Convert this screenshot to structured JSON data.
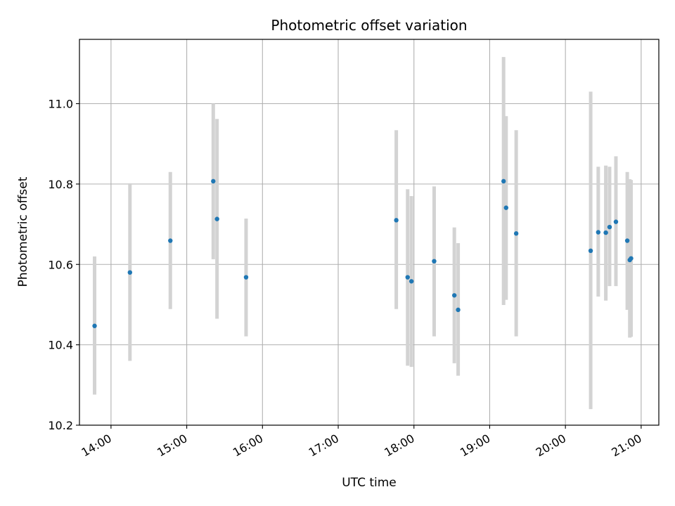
{
  "chart_data": {
    "type": "scatter",
    "title": "Photometric offset variation",
    "xlabel": "UTC time",
    "ylabel": "Photometric offset",
    "xlim": [
      "13:35",
      "21:14"
    ],
    "ylim": [
      10.2,
      11.16
    ],
    "x_ticks": [
      "14:00",
      "15:00",
      "16:00",
      "17:00",
      "18:00",
      "19:00",
      "20:00",
      "21:00"
    ],
    "y_ticks": [
      10.2,
      10.4,
      10.6,
      10.8,
      11.0
    ],
    "y_tick_labels": [
      "10.2",
      "10.4",
      "10.6",
      "10.8",
      "11.0"
    ],
    "grid": true,
    "colors": {
      "point": "#1f77b4",
      "errorbar": "#d3d3d3",
      "grid": "#b0b0b0"
    },
    "points": [
      {
        "x": "13:47",
        "y": 10.447,
        "ylow": 10.276,
        "yhigh": 10.62
      },
      {
        "x": "14:15",
        "y": 10.58,
        "ylow": 10.36,
        "yhigh": 10.802
      },
      {
        "x": "14:47",
        "y": 10.659,
        "ylow": 10.489,
        "yhigh": 10.83
      },
      {
        "x": "15:21",
        "y": 10.807,
        "ylow": 10.613,
        "yhigh": 11.0
      },
      {
        "x": "15:24",
        "y": 10.713,
        "ylow": 10.465,
        "yhigh": 10.962
      },
      {
        "x": "15:47",
        "y": 10.568,
        "ylow": 10.421,
        "yhigh": 10.714
      },
      {
        "x": "17:46",
        "y": 10.71,
        "ylow": 10.489,
        "yhigh": 10.934
      },
      {
        "x": "17:55",
        "y": 10.568,
        "ylow": 10.348,
        "yhigh": 10.787
      },
      {
        "x": "17:58",
        "y": 10.558,
        "ylow": 10.345,
        "yhigh": 10.77
      },
      {
        "x": "18:16",
        "y": 10.608,
        "ylow": 10.421,
        "yhigh": 10.794
      },
      {
        "x": "18:32",
        "y": 10.523,
        "ylow": 10.354,
        "yhigh": 10.692
      },
      {
        "x": "18:35",
        "y": 10.487,
        "ylow": 10.323,
        "yhigh": 10.653
      },
      {
        "x": "19:11",
        "y": 10.807,
        "ylow": 10.499,
        "yhigh": 11.116
      },
      {
        "x": "19:13",
        "y": 10.741,
        "ylow": 10.512,
        "yhigh": 10.969
      },
      {
        "x": "19:21",
        "y": 10.677,
        "ylow": 10.421,
        "yhigh": 10.934
      },
      {
        "x": "20:20",
        "y": 10.634,
        "ylow": 10.24,
        "yhigh": 11.03
      },
      {
        "x": "20:26",
        "y": 10.68,
        "ylow": 10.52,
        "yhigh": 10.843
      },
      {
        "x": "20:32",
        "y": 10.679,
        "ylow": 10.51,
        "yhigh": 10.846
      },
      {
        "x": "20:35",
        "y": 10.693,
        "ylow": 10.546,
        "yhigh": 10.843
      },
      {
        "x": "20:40",
        "y": 10.706,
        "ylow": 10.546,
        "yhigh": 10.869
      },
      {
        "x": "20:49",
        "y": 10.659,
        "ylow": 10.487,
        "yhigh": 10.83
      },
      {
        "x": "20:51",
        "y": 10.611,
        "ylow": 10.418,
        "yhigh": 10.812
      },
      {
        "x": "20:52",
        "y": 10.615,
        "ylow": 10.42,
        "yhigh": 10.81
      }
    ]
  }
}
